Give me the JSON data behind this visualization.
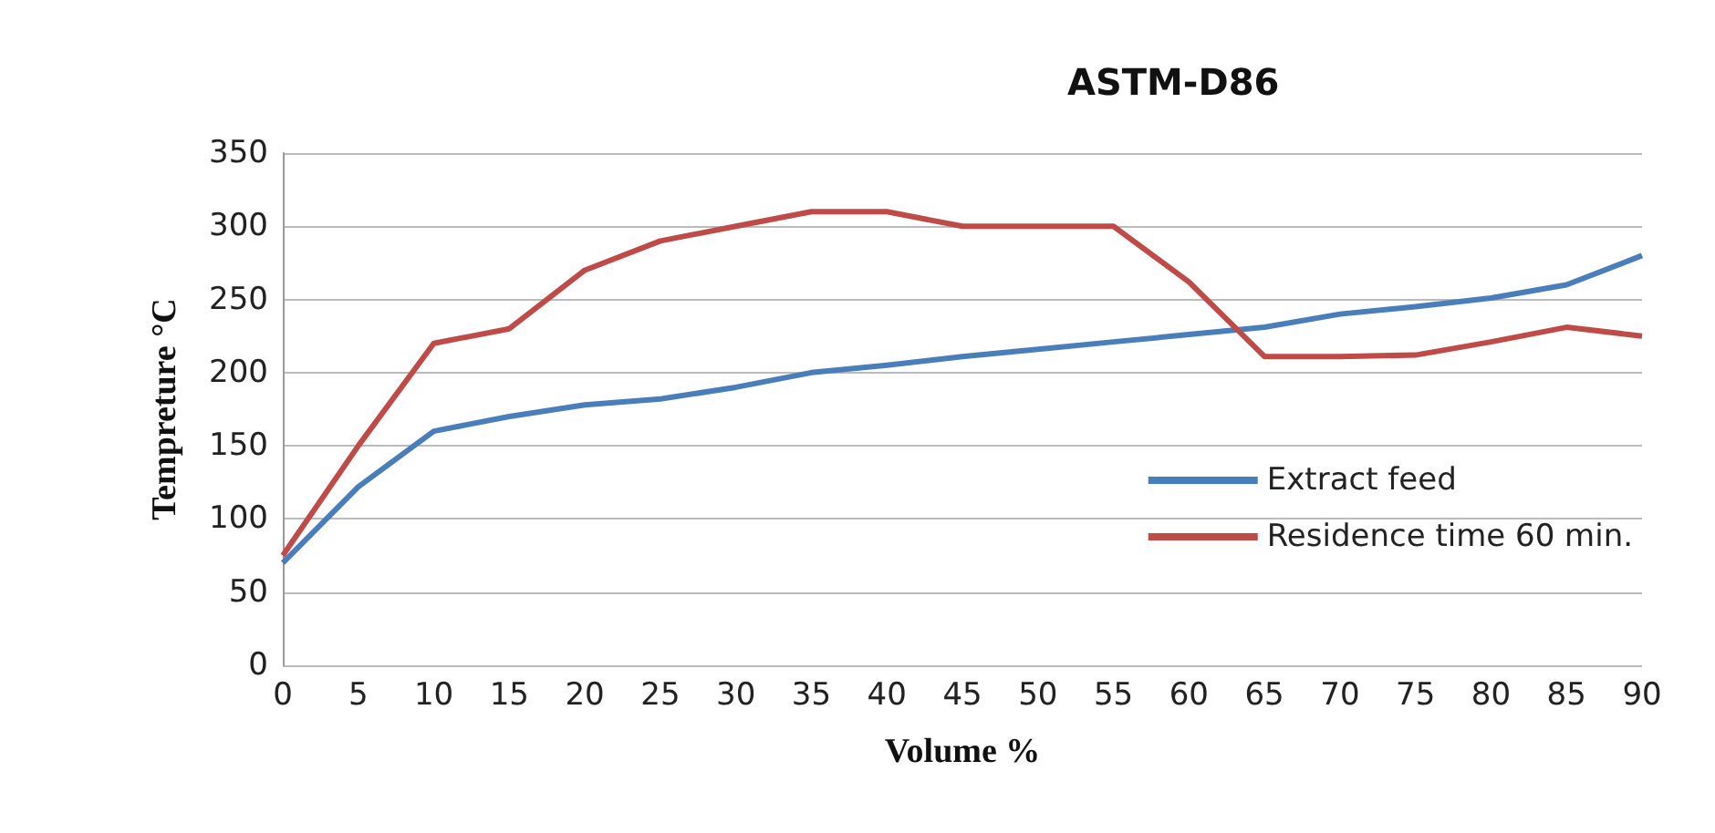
{
  "chart_data": {
    "type": "line",
    "title": "ASTM-D86",
    "xlabel": "Volume %",
    "ylabel": "Tempreture °C",
    "categories": [
      "0",
      "5",
      "10",
      "15",
      "20",
      "25",
      "30",
      "35",
      "40",
      "45",
      "50",
      "55",
      "60",
      "65",
      "70",
      "75",
      "80",
      "85",
      "90"
    ],
    "series": [
      {
        "name": "Extract feed",
        "color": "#4a7ebb",
        "values": [
          70,
          122,
          160,
          170,
          178,
          182,
          190,
          200,
          205,
          211,
          216,
          221,
          226,
          231,
          240,
          245,
          251,
          260,
          280
        ]
      },
      {
        "name": "Residence time 60 min.",
        "color": "#be4b48",
        "values": [
          75,
          150,
          220,
          230,
          270,
          290,
          300,
          310,
          310,
          300,
          300,
          300,
          262,
          211,
          211,
          212,
          221,
          231,
          225
        ]
      }
    ],
    "ylim": [
      0,
      350
    ],
    "yticks": [
      0,
      50,
      100,
      150,
      200,
      250,
      300,
      350
    ],
    "grid": "y",
    "legend": "right",
    "marker": "none",
    "line_style": "solid"
  }
}
